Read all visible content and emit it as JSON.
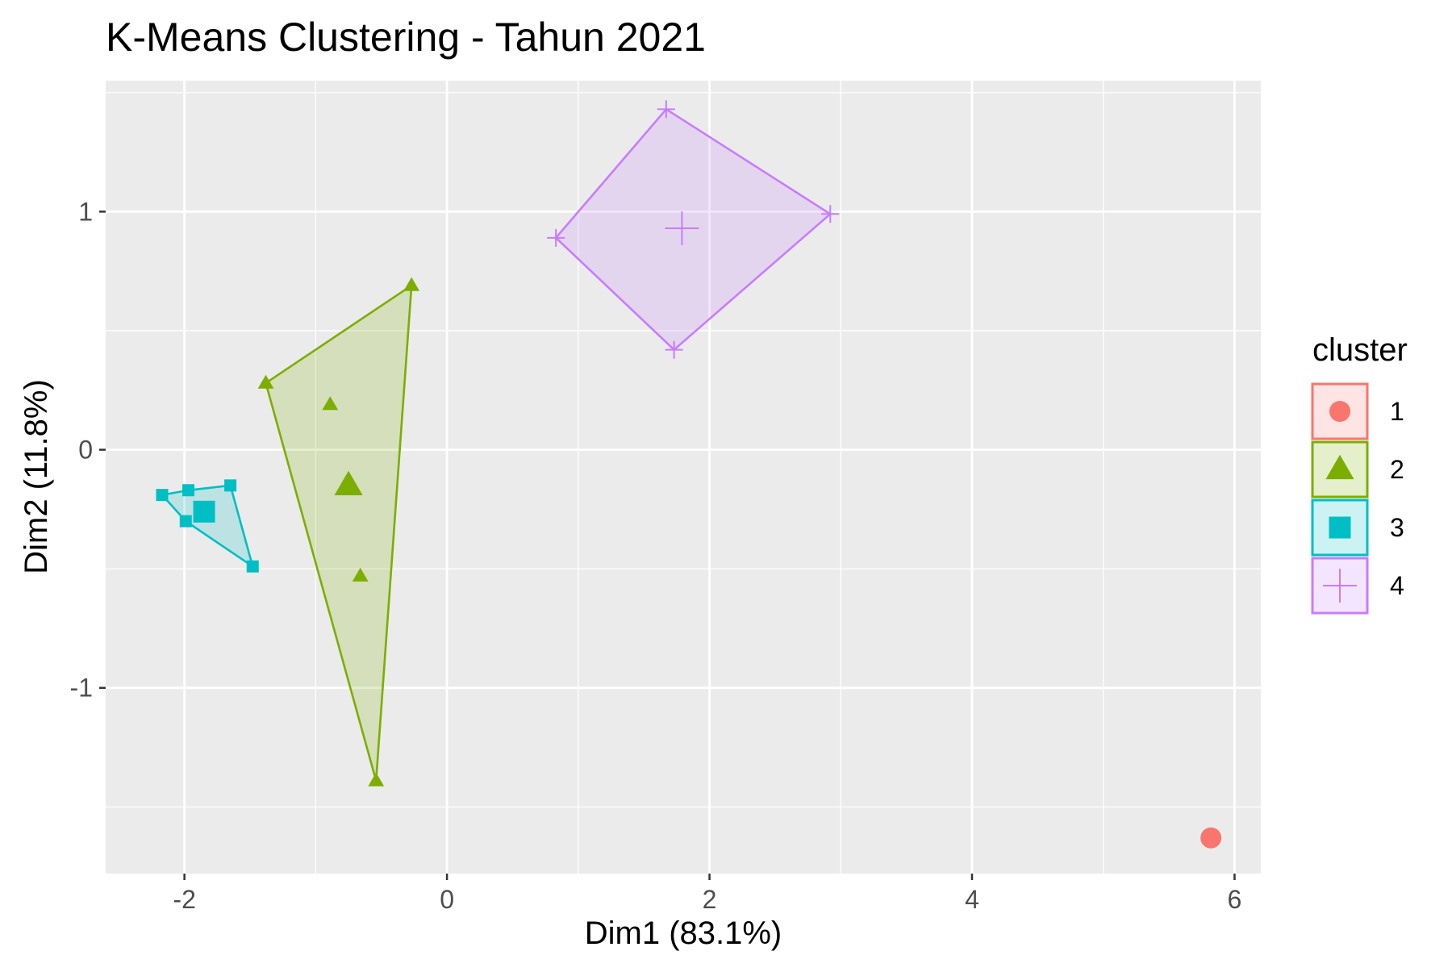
{
  "chart_data": {
    "type": "scatter",
    "title": "K-Means Clustering - Tahun 2021",
    "xlabel": "Dim1 (83.1%)",
    "ylabel": "Dim2 (11.8%)",
    "xlim": [
      -2.6,
      6.2
    ],
    "ylim": [
      -1.78,
      1.55
    ],
    "x_ticks": [
      -2,
      0,
      2,
      4,
      6
    ],
    "x_tick_labels": [
      "-2",
      "0",
      "2",
      "4",
      "6"
    ],
    "y_ticks": [
      -1,
      0,
      1
    ],
    "y_tick_labels": [
      "-1",
      "0",
      "1"
    ],
    "grid": true,
    "legend": {
      "title": "cluster",
      "position": "right"
    },
    "series": [
      {
        "name": "1",
        "color": "#F8766D",
        "shape": "circle",
        "points": [
          [
            5.82,
            -1.63
          ]
        ],
        "hull": [],
        "center": [
          5.82,
          -1.63
        ]
      },
      {
        "name": "2",
        "color": "#7CAE00",
        "shape": "triangle",
        "points": [
          [
            -0.27,
            0.69
          ],
          [
            -1.38,
            0.28
          ],
          [
            -0.89,
            0.19
          ],
          [
            -0.66,
            -0.53
          ],
          [
            -0.54,
            -1.39
          ]
        ],
        "hull": [
          [
            -0.27,
            0.69
          ],
          [
            -1.38,
            0.28
          ],
          [
            -0.54,
            -1.39
          ]
        ],
        "center": [
          -0.75,
          -0.15
        ]
      },
      {
        "name": "3",
        "color": "#00BFC4",
        "shape": "square",
        "points": [
          [
            -2.17,
            -0.19
          ],
          [
            -1.97,
            -0.17
          ],
          [
            -1.65,
            -0.15
          ],
          [
            -1.99,
            -0.3
          ],
          [
            -1.48,
            -0.49
          ]
        ],
        "hull": [
          [
            -2.17,
            -0.19
          ],
          [
            -1.97,
            -0.17
          ],
          [
            -1.65,
            -0.15
          ],
          [
            -1.48,
            -0.49
          ],
          [
            -1.99,
            -0.3
          ]
        ],
        "center": [
          -1.85,
          -0.26
        ]
      },
      {
        "name": "4",
        "color": "#C77CFF",
        "shape": "cross",
        "points": [
          [
            1.67,
            1.43
          ],
          [
            2.92,
            0.99
          ],
          [
            0.83,
            0.89
          ],
          [
            1.73,
            0.42
          ]
        ],
        "hull": [
          [
            1.67,
            1.43
          ],
          [
            2.92,
            0.99
          ],
          [
            1.73,
            0.42
          ],
          [
            0.83,
            0.89
          ]
        ],
        "center": [
          1.79,
          0.93
        ]
      }
    ]
  }
}
